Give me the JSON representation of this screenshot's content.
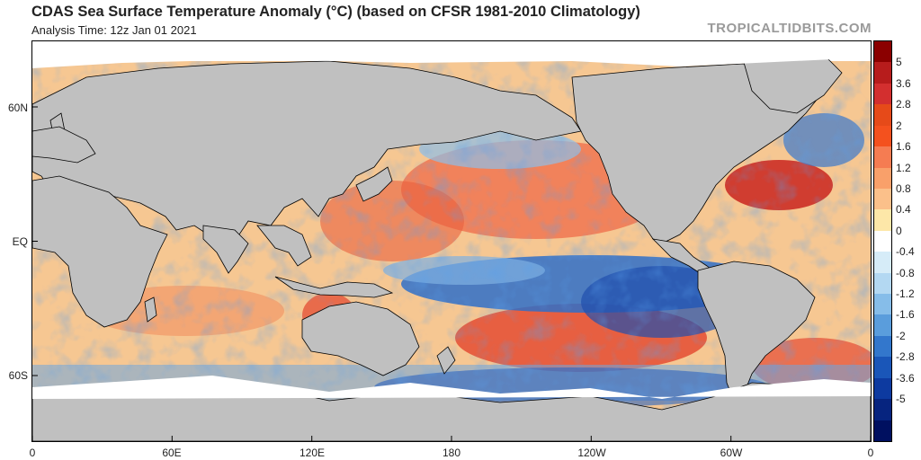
{
  "header": {
    "title": "CDAS Sea Surface Temperature Anomaly (°C) (based on CFSR 1981-2010 Climatology)",
    "analysis_time": "Analysis Time: 12z Jan 01 2021",
    "brand": "TROPICALTIDBITS.COM"
  },
  "map": {
    "lat_labels": [
      "60N",
      "EQ",
      "60S"
    ],
    "lon_labels": [
      "0",
      "60E",
      "120E",
      "180",
      "120W",
      "60W",
      "0"
    ],
    "land_color": "#c0c0c0",
    "ice_color": "#ffffff",
    "coast_color": "#000000"
  },
  "colorbar": {
    "labels": [
      "5",
      "3.6",
      "2.8",
      "2",
      "1.6",
      "1.2",
      "0.8",
      "0.4",
      "0",
      "-0.4",
      "-0.8",
      "-1.2",
      "-1.6",
      "-2",
      "-2.8",
      "-3.6",
      "-5"
    ],
    "colors": [
      "#8b0000",
      "#b71c1c",
      "#d32f2f",
      "#e64a19",
      "#f4511e",
      "#f57c52",
      "#f9a06a",
      "#fbc08a",
      "#fde7a8",
      "#ffffff",
      "#d6ecf8",
      "#b3d8f2",
      "#86bde9",
      "#5a9ddc",
      "#3377cc",
      "#1a56b8",
      "#0d3aa0",
      "#06247f",
      "#001060"
    ]
  }
}
